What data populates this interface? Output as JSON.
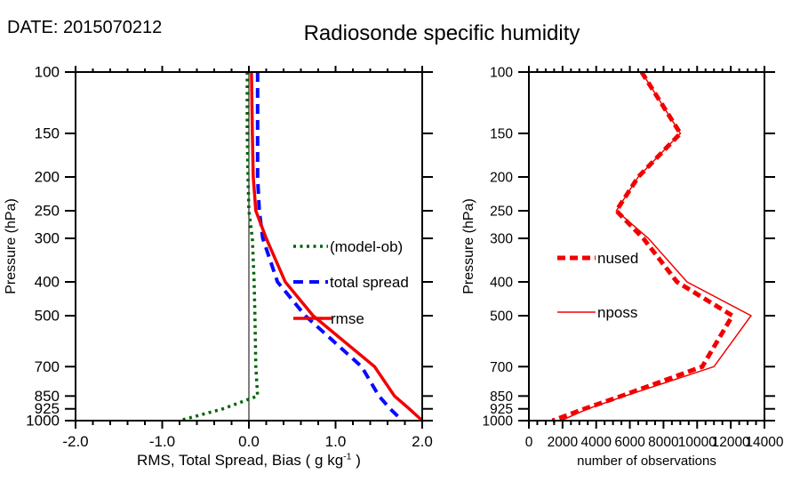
{
  "header": {
    "date": "DATE: 2015070212",
    "title": "Radiosonde specific humidity"
  },
  "colors": {
    "frame": "#000000",
    "text": "#000000",
    "bias_green": "#006400",
    "spread_blue": "#0a0aff",
    "rmse_red": "#f20000",
    "obs_red": "#f20000"
  },
  "chart_data": [
    {
      "type": "line",
      "panel": "left",
      "title": "",
      "xlabel": "RMS, Total Spread, Bias ( g kg-1 )",
      "xlabel_parts": {
        "main": "RMS, Total Spread, Bias ( g kg",
        "sup": "-1",
        "end": " )"
      },
      "ylabel": "Pressure (hPa)",
      "yscale": "log",
      "y_inverted": true,
      "ylim": [
        100,
        1000
      ],
      "yticks": [
        100,
        150,
        200,
        250,
        300,
        400,
        500,
        700,
        850,
        925,
        1000
      ],
      "xlim": [
        -2.0,
        2.0
      ],
      "xticks": {
        "values": [
          -2,
          -1,
          0,
          1,
          2
        ],
        "labels": [
          "-2.0",
          "-1.0",
          "0.0",
          "1.0",
          "2.0"
        ]
      },
      "xminor_step": 0.2,
      "zero_line_x": 0.0,
      "grid": false,
      "legend_position": "inside-center",
      "pressure_levels": [
        100,
        150,
        200,
        250,
        300,
        400,
        500,
        700,
        850,
        925,
        1000
      ],
      "series": [
        {
          "name": "(model-ob)",
          "color": "#006400",
          "style": "dotted",
          "width": 3.5,
          "values": [
            -0.02,
            -0.02,
            -0.01,
            0.0,
            0.04,
            0.06,
            0.07,
            0.08,
            0.1,
            -0.3,
            -0.8
          ]
        },
        {
          "name": "total spread",
          "color": "#0a0aff",
          "style": "dashed",
          "width": 4,
          "values": [
            0.1,
            0.1,
            0.1,
            0.12,
            0.16,
            0.33,
            0.65,
            1.3,
            1.5,
            1.63,
            1.77
          ]
        },
        {
          "name": "rmse",
          "color": "#f20000",
          "style": "solid",
          "width": 3.5,
          "values": [
            0.03,
            0.04,
            0.05,
            0.08,
            0.2,
            0.42,
            0.74,
            1.45,
            1.68,
            1.85,
            2.0
          ]
        }
      ]
    },
    {
      "type": "line",
      "panel": "right",
      "title": "",
      "xlabel": "number of observations",
      "ylabel": "Pressure (hPa)",
      "yscale": "log",
      "y_inverted": true,
      "ylim": [
        100,
        1000
      ],
      "yticks": [
        100,
        150,
        200,
        250,
        300,
        400,
        500,
        700,
        850,
        925,
        1000
      ],
      "xlim": [
        0,
        14000
      ],
      "xticks": {
        "values": [
          0,
          2000,
          4000,
          6000,
          8000,
          10000,
          12000,
          14000
        ],
        "labels": [
          "0",
          "2000",
          "4000",
          "6000",
          "8000",
          "10000",
          "12000",
          "14000"
        ]
      },
      "xminor_step": 500,
      "grid": false,
      "legend_position": "inside-left",
      "pressure_levels": [
        100,
        150,
        200,
        250,
        300,
        400,
        500,
        700,
        850,
        925,
        1000
      ],
      "series": [
        {
          "name": "nused",
          "color": "#f20000",
          "style": "dashed",
          "width": 5,
          "values": [
            6700,
            9000,
            6500,
            5200,
            6800,
            8800,
            12100,
            10300,
            5500,
            3300,
            1400
          ]
        },
        {
          "name": "nposs",
          "color": "#f20000",
          "style": "solid",
          "width": 1.5,
          "values": [
            6700,
            9000,
            6500,
            5200,
            7100,
            9400,
            13200,
            11000,
            5700,
            3500,
            1900
          ]
        }
      ]
    }
  ]
}
